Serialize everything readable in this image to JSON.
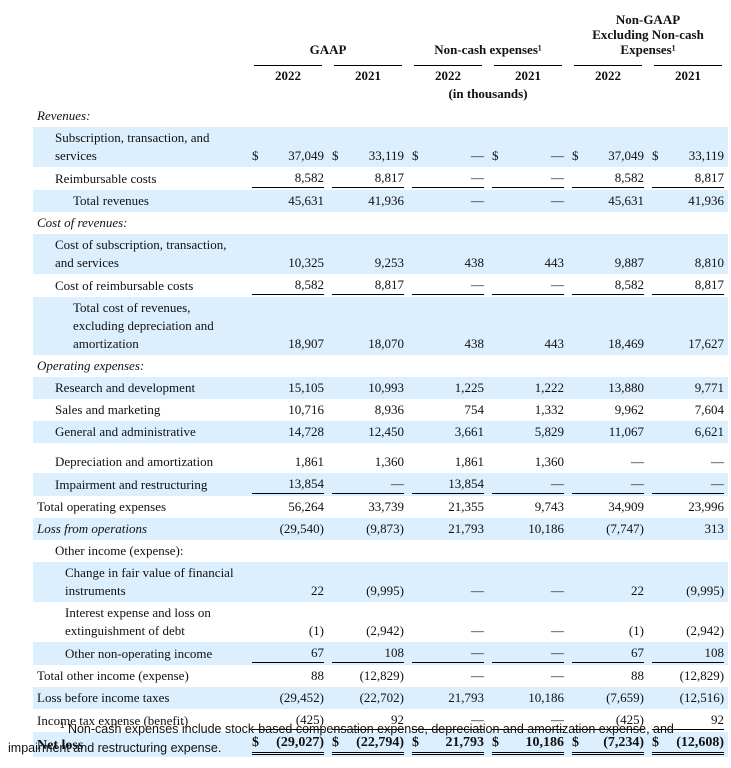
{
  "table": {
    "group_headers": [
      "GAAP",
      "Non-cash expenses¹",
      "Non-GAAP Excluding Non-cash Expenses¹"
    ],
    "years": [
      "2022",
      "2021",
      "2022",
      "2021",
      "2022",
      "2021"
    ],
    "unit_note": "(in thousands)",
    "rows": [
      {
        "label": "Revenues:"
      },
      {
        "label": "Subscription, transaction, and services",
        "cells": [
          {
            "currency": "$",
            "amount": "37,049"
          },
          {
            "currency": "$",
            "amount": "33,119"
          },
          {
            "currency": "$",
            "amount": "—"
          },
          {
            "currency": "$",
            "amount": "—"
          },
          {
            "currency": "$",
            "amount": "37,049"
          },
          {
            "currency": "$",
            "amount": "33,119"
          }
        ]
      },
      {
        "label": "Reimbursable costs",
        "cells": [
          "8,582",
          "8,817",
          "—",
          "—",
          "8,582",
          "8,817"
        ]
      },
      {
        "label": "Total revenues",
        "cells": [
          "45,631",
          "41,936",
          "—",
          "—",
          "45,631",
          "41,936"
        ]
      },
      {
        "label": "Cost of revenues:"
      },
      {
        "label": "Cost of subscription, transaction, and services",
        "cells": [
          "10,325",
          "9,253",
          "438",
          "443",
          "9,887",
          "8,810"
        ]
      },
      {
        "label": "Cost of reimbursable costs",
        "cells": [
          "8,582",
          "8,817",
          "—",
          "—",
          "8,582",
          "8,817"
        ]
      },
      {
        "label": "Total cost of revenues, excluding depreciation and amortization",
        "cells": [
          "18,907",
          "18,070",
          "438",
          "443",
          "18,469",
          "17,627"
        ]
      },
      {
        "label": "Operating expenses:"
      },
      {
        "label": "Research and development",
        "cells": [
          "15,105",
          "10,993",
          "1,225",
          "1,222",
          "13,880",
          "9,771"
        ]
      },
      {
        "label": "Sales and marketing",
        "cells": [
          "10,716",
          "8,936",
          "754",
          "1,332",
          "9,962",
          "7,604"
        ]
      },
      {
        "label": "General and administrative",
        "cells": [
          "14,728",
          "12,450",
          "3,661",
          "5,829",
          "11,067",
          "6,621"
        ]
      },
      {
        "label": "Depreciation and amortization",
        "cells": [
          "1,861",
          "1,360",
          "1,861",
          "1,360",
          "—",
          "—"
        ]
      },
      {
        "label": "Impairment and restructuring",
        "cells": [
          "13,854",
          "—",
          "13,854",
          "—",
          "—",
          "—"
        ]
      },
      {
        "label": "Total operating expenses",
        "cells": [
          "56,264",
          "33,739",
          "21,355",
          "9,743",
          "34,909",
          "23,996"
        ]
      },
      {
        "label": "Loss from operations",
        "cells": [
          "(29,540)",
          "(9,873)",
          "21,793",
          "10,186",
          "(7,747)",
          "313"
        ]
      },
      {
        "label": "Other income (expense):"
      },
      {
        "label": "Change in fair value of financial instruments",
        "cells": [
          "22",
          "(9,995)",
          "—",
          "—",
          "22",
          "(9,995)"
        ]
      },
      {
        "label": "Interest expense and loss on extinguishment of debt",
        "cells": [
          "(1)",
          "(2,942)",
          "—",
          "—",
          "(1)",
          "(2,942)"
        ]
      },
      {
        "label": "Other non-operating income",
        "cells": [
          "67",
          "108",
          "—",
          "—",
          "67",
          "108"
        ]
      },
      {
        "label": "Total other income (expense)",
        "cells": [
          "88",
          "(12,829)",
          "—",
          "—",
          "88",
          "(12,829)"
        ]
      },
      {
        "label": "Loss before income taxes",
        "cells": [
          "(29,452)",
          "(22,702)",
          "21,793",
          "10,186",
          "(7,659)",
          "(12,516)"
        ]
      },
      {
        "label": "Income tax expense (benefit)",
        "cells": [
          "(425)",
          "92",
          "—",
          "—",
          "(425)",
          "92"
        ]
      },
      {
        "label": "Net loss",
        "cells": [
          {
            "currency": "$",
            "amount": "(29,027)"
          },
          {
            "currency": "$",
            "amount": "(22,794)"
          },
          {
            "currency": "$",
            "amount": "21,793"
          },
          {
            "currency": "$",
            "amount": "10,186"
          },
          {
            "currency": "$",
            "amount": "(7,234)"
          },
          {
            "currency": "$",
            "amount": "(12,608)"
          }
        ]
      }
    ]
  },
  "footnote": {
    "marker": "1",
    "text": "Non-cash expenses include stock-based compensation expense, depreciation and amortization expense, and impairment and restructuring expense."
  }
}
